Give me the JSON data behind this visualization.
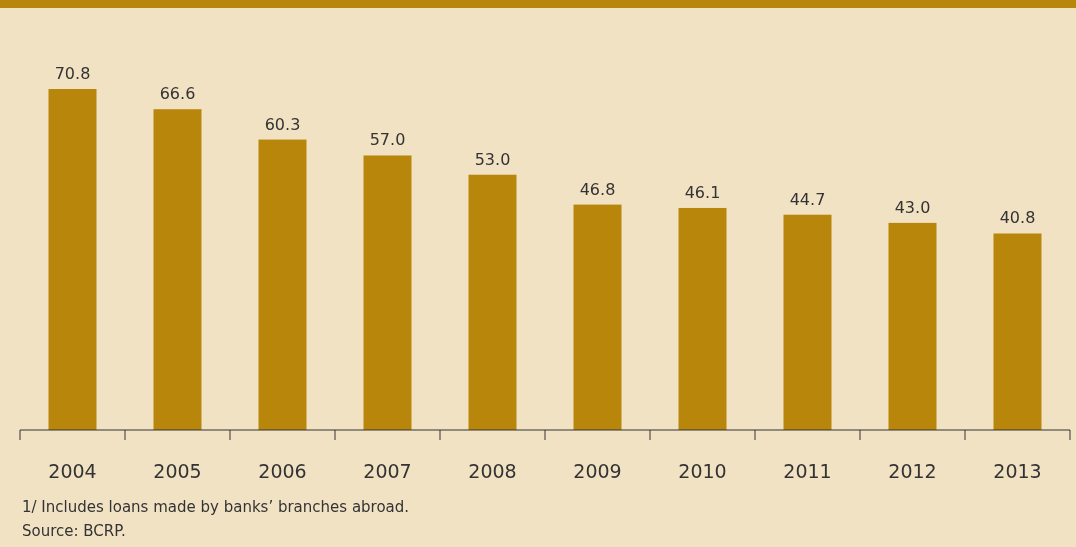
{
  "chart_data": {
    "type": "bar",
    "categories": [
      "2004",
      "2005",
      "2006",
      "2007",
      "2008",
      "2009",
      "2010",
      "2011",
      "2012",
      "2013"
    ],
    "values": [
      70.8,
      66.6,
      60.3,
      57.0,
      53.0,
      46.8,
      46.1,
      44.7,
      43.0,
      40.8
    ],
    "value_labels": [
      "70.8",
      "66.6",
      "60.3",
      "57.0",
      "53.0",
      "46.8",
      "46.1",
      "44.7",
      "43.0",
      "40.8"
    ],
    "color": "#b8860b",
    "annotations": [
      "1/ Includes loans made by banks’ branches abroad.",
      "Source: BCRP."
    ]
  }
}
